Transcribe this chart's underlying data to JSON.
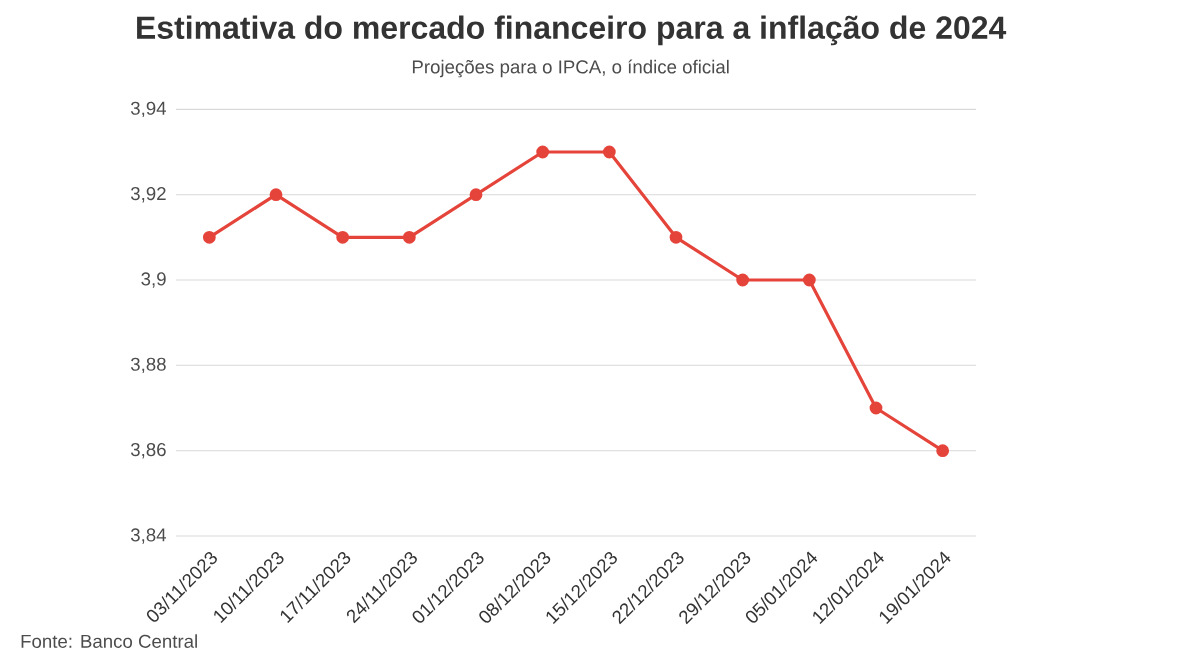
{
  "chart_data": {
    "type": "line",
    "title": "Estimativa do mercado financeiro para a inflação de 2024",
    "subtitle": "Projeções para o IPCA, o índice oficial",
    "categories": [
      "03/11/2023",
      "10/11/2023",
      "17/11/2023",
      "24/11/2023",
      "01/12/2023",
      "08/12/2023",
      "15/12/2023",
      "22/12/2023",
      "29/12/2023",
      "05/01/2024",
      "12/01/2024",
      "19/01/2024"
    ],
    "values": [
      3.91,
      3.92,
      3.91,
      3.91,
      3.92,
      3.93,
      3.93,
      3.91,
      3.9,
      3.9,
      3.87,
      3.86
    ],
    "color": "#e5443a",
    "marker": "circle",
    "line_style": "solid",
    "grid": "y",
    "ylim": [
      3.84,
      3.94
    ],
    "yticks": [
      {
        "value": 3.84,
        "label": "3,84"
      },
      {
        "value": 3.86,
        "label": "3,86"
      },
      {
        "value": 3.88,
        "label": "3,88"
      },
      {
        "value": 3.9,
        "label": "3,9"
      },
      {
        "value": 3.92,
        "label": "3,92"
      },
      {
        "value": 3.94,
        "label": "3,94"
      }
    ],
    "annotations": [
      "Fonte: Banco Central"
    ]
  }
}
